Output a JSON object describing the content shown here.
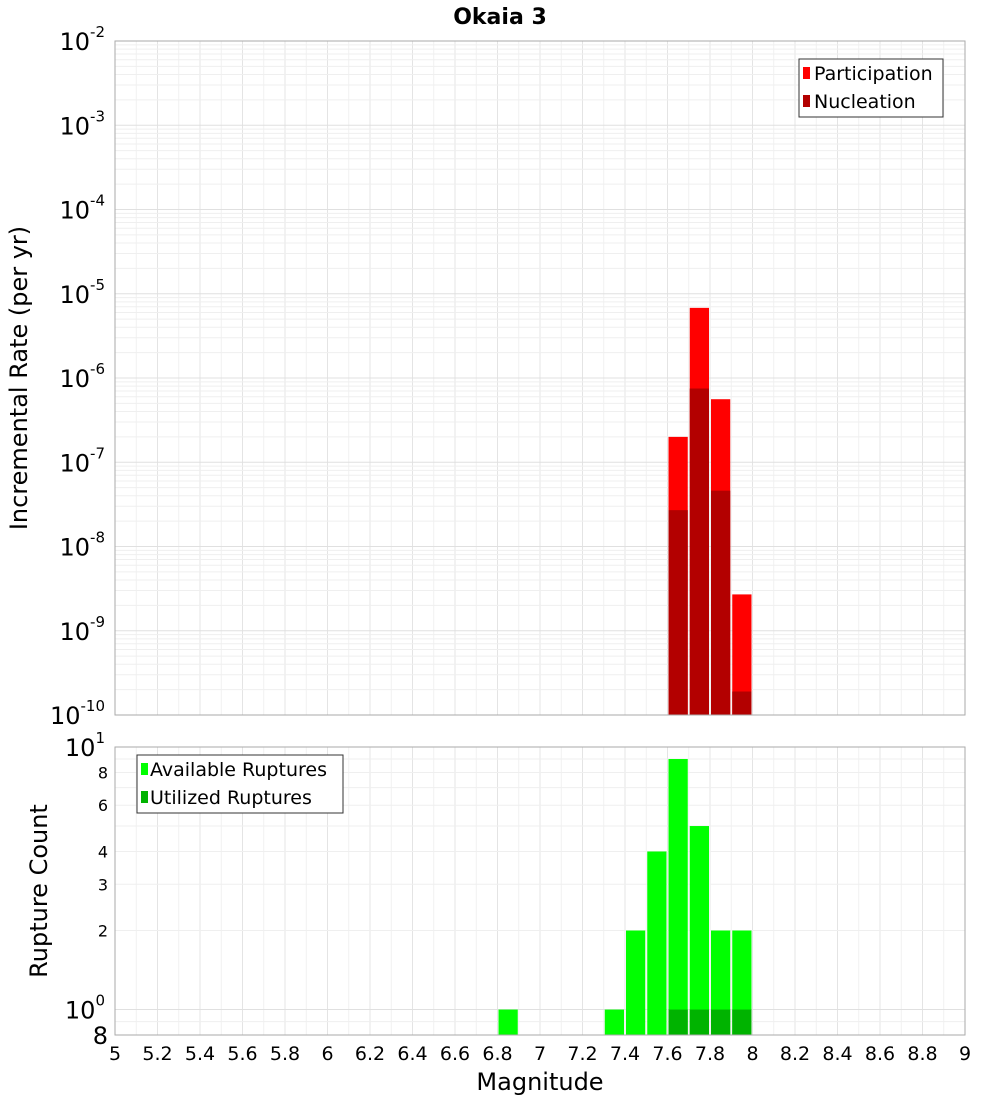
{
  "chart_data": [
    {
      "name": "rate-panel",
      "type": "bar",
      "title": "Okaia 3",
      "ylabel": "Incremental Rate (per yr)",
      "yscale": "log",
      "xlim": [
        5,
        9
      ],
      "ylim": [
        1e-10,
        0.01
      ],
      "y_ticks": [
        {
          "base": "10",
          "exp": "-10",
          "value": 1e-10
        },
        {
          "base": "10",
          "exp": "-9",
          "value": 1e-09
        },
        {
          "base": "10",
          "exp": "-8",
          "value": 1e-08
        },
        {
          "base": "10",
          "exp": "-7",
          "value": 1e-07
        },
        {
          "base": "10",
          "exp": "-6",
          "value": 1e-06
        },
        {
          "base": "10",
          "exp": "-5",
          "value": 1e-05
        },
        {
          "base": "10",
          "exp": "-4",
          "value": 0.0001
        },
        {
          "base": "10",
          "exp": "-3",
          "value": 0.001
        },
        {
          "base": "10",
          "exp": "-2",
          "value": 0.01
        }
      ],
      "grid": true,
      "legend_position": "top-right",
      "bar_width": 0.1,
      "series": [
        {
          "name": "Participation",
          "color": "#ff0000",
          "x": [
            7.65,
            7.75,
            7.85,
            7.95
          ],
          "values": [
            2e-07,
            6.8e-06,
            5.6e-07,
            2.7e-09
          ]
        },
        {
          "name": "Nucleation",
          "color": "#b30000",
          "x": [
            7.65,
            7.75,
            7.85,
            7.95
          ],
          "values": [
            2.7e-08,
            7.5e-07,
            4.6e-08,
            1.9e-10
          ]
        }
      ]
    },
    {
      "name": "count-panel",
      "type": "bar",
      "xlabel": "Magnitude",
      "ylabel": "Rupture Count",
      "yscale": "log",
      "xlim": [
        5,
        9
      ],
      "ylim": [
        0.8,
        10
      ],
      "y_ticks": [
        {
          "base": "10",
          "exp": "0",
          "value": 1
        },
        {
          "base": "10",
          "exp": "1",
          "value": 10
        }
      ],
      "y_minor_ticks": [
        {
          "label": "8",
          "value": 0.8
        },
        {
          "label": "2",
          "value": 2
        },
        {
          "label": "3",
          "value": 3
        },
        {
          "label": "4",
          "value": 4
        },
        {
          "label": "6",
          "value": 6
        },
        {
          "label": "8",
          "value": 8
        }
      ],
      "x_ticks": [
        "5",
        "5.2",
        "5.4",
        "5.6",
        "5.8",
        "6",
        "6.2",
        "6.4",
        "6.6",
        "6.8",
        "7",
        "7.2",
        "7.4",
        "7.6",
        "7.8",
        "8",
        "8.2",
        "8.4",
        "8.6",
        "8.8",
        "9"
      ],
      "grid": true,
      "legend_position": "top-left",
      "bar_width": 0.1,
      "series": [
        {
          "name": "Available Ruptures",
          "color": "#00ff00",
          "x": [
            6.85,
            7.35,
            7.45,
            7.55,
            7.65,
            7.75,
            7.85,
            7.95
          ],
          "values": [
            1,
            1,
            2,
            4,
            9,
            5,
            2,
            2
          ]
        },
        {
          "name": "Utilized Ruptures",
          "color": "#00b300",
          "x": [
            7.65,
            7.75,
            7.85,
            7.95
          ],
          "values": [
            1,
            1,
            1,
            1
          ]
        }
      ]
    }
  ]
}
